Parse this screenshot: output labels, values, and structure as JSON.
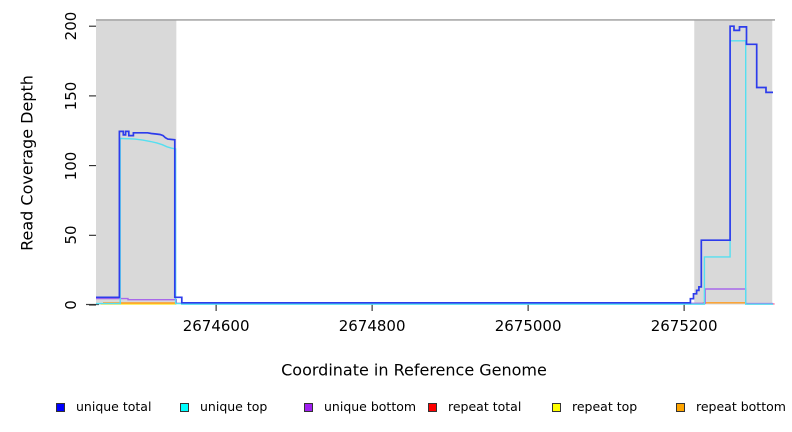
{
  "chart_data": {
    "type": "line",
    "title": "",
    "xlabel": "Coordinate in Reference Genome",
    "ylabel": "Read Coverage Depth",
    "xlim": [
      2674446,
      2675317
    ],
    "ylim": [
      0,
      205
    ],
    "x_ticks": [
      2674600,
      2674800,
      2675000,
      2675200
    ],
    "y_ticks": [
      0,
      50,
      100,
      150,
      200
    ],
    "grid": false,
    "legend_position": "bottom",
    "upper_bound_line_value": 204.5,
    "highlight_regions": [
      {
        "name": "left-repeat-region",
        "x_start": 2674446,
        "x_end": 2674549,
        "color": "#d9d9d9"
      },
      {
        "name": "right-repeat-region",
        "x_start": 2675213,
        "x_end": 2675313,
        "color": "#d9d9d9"
      }
    ],
    "series": [
      {
        "name": "unique total",
        "legend_color": "#0000ff",
        "line_color": "#2d3cec",
        "z": 6,
        "width": 1.7,
        "segments": [
          [
            [
              2674446,
              5.5
            ],
            [
              2674476,
              5.5
            ],
            [
              2674476,
              124.5
            ],
            [
              2674481,
              124.5
            ],
            [
              2674481,
              122
            ],
            [
              2674484,
              122
            ],
            [
              2674484,
              124.5
            ],
            [
              2674488,
              124.5
            ],
            [
              2674488,
              121.5
            ],
            [
              2674494,
              121.5
            ],
            [
              2674494,
              123.5
            ],
            [
              2674512,
              123.5
            ],
            [
              2674517,
              123
            ],
            [
              2674523,
              122.7
            ],
            [
              2674528,
              122.3
            ],
            [
              2674532,
              121.5
            ],
            [
              2674535,
              120
            ],
            [
              2674538,
              119
            ],
            [
              2674547,
              118.5
            ],
            [
              2674547,
              5.5
            ],
            [
              2674556,
              5.5
            ],
            [
              2674556,
              1.6
            ],
            [
              2675208,
              1.6
            ],
            [
              2675208,
              4.5
            ],
            [
              2675212,
              4.5
            ],
            [
              2675212,
              8
            ],
            [
              2675216,
              8
            ],
            [
              2675216,
              10.5
            ],
            [
              2675219,
              10.5
            ],
            [
              2675219,
              13
            ],
            [
              2675222,
              13
            ],
            [
              2675222,
              46.5
            ],
            [
              2675259,
              46.5
            ],
            [
              2675259,
              200
            ],
            [
              2675264,
              200
            ],
            [
              2675264,
              197
            ],
            [
              2675271,
              197
            ],
            [
              2675271,
              199.5
            ],
            [
              2675280,
              199.5
            ],
            [
              2675280,
              187
            ],
            [
              2675293,
              187
            ],
            [
              2675293,
              156
            ],
            [
              2675305,
              156
            ],
            [
              2675305,
              152.5
            ],
            [
              2675314,
              152.5
            ]
          ]
        ]
      },
      {
        "name": "unique top",
        "legend_color": "#00ffff",
        "line_color": "#55dff0",
        "z": 5,
        "width": 1.4,
        "segments": [
          [
            [
              2674446,
              1
            ],
            [
              2674477,
              1
            ],
            [
              2674477,
              119.5
            ],
            [
              2674496,
              119
            ],
            [
              2674506,
              118.3
            ],
            [
              2674516,
              117.3
            ],
            [
              2674524,
              116.3
            ],
            [
              2674531,
              115
            ],
            [
              2674537,
              113.5
            ],
            [
              2674543,
              112.5
            ],
            [
              2674548,
              112
            ],
            [
              2674548,
              1
            ],
            [
              2674556,
              1
            ],
            [
              2674556,
              0.6
            ],
            [
              2675226,
              0.6
            ],
            [
              2675226,
              34.5
            ],
            [
              2675259,
              34.5
            ],
            [
              2675259,
              189.5
            ],
            [
              2675279,
              189.5
            ],
            [
              2675279,
              0.6
            ],
            [
              2675314,
              0.6
            ]
          ]
        ]
      },
      {
        "name": "unique bottom",
        "legend_color": "#a020f0",
        "line_color": "#a868ea",
        "z": 4,
        "width": 1.4,
        "segments": [
          [
            [
              2674446,
              4.6
            ],
            [
              2674487,
              4.6
            ],
            [
              2674487,
              3.8
            ],
            [
              2674549,
              3.8
            ],
            [
              2674549,
              1.2
            ],
            [
              2675227,
              1.2
            ],
            [
              2675227,
              11.5
            ],
            [
              2675279,
              11.5
            ],
            [
              2675279,
              1
            ],
            [
              2675314,
              1
            ]
          ]
        ]
      },
      {
        "name": "repeat total",
        "legend_color": "#ff0000",
        "line_color": "#f272a2",
        "z": 3,
        "width": 1.4,
        "segments": [
          [
            [
              2675280,
              0.8
            ],
            [
              2675316,
              0.8
            ]
          ]
        ]
      },
      {
        "name": "repeat top",
        "legend_color": "#ffff00",
        "line_color": "#ffe93d",
        "z": 1,
        "width": 1.4,
        "segments": [
          [
            [
              2674452,
              0.7
            ],
            [
              2674549,
              0.7
            ]
          ]
        ]
      },
      {
        "name": "repeat bottom",
        "legend_color": "#ffa500",
        "line_color": "#ff9c20",
        "z": 2,
        "width": 1.4,
        "segments": [
          [
            [
              2674455,
              1.4
            ],
            [
              2674549,
              1.4
            ]
          ],
          [
            [
              2675224,
              1.6
            ],
            [
              2675280,
              1.6
            ]
          ]
        ]
      }
    ]
  }
}
